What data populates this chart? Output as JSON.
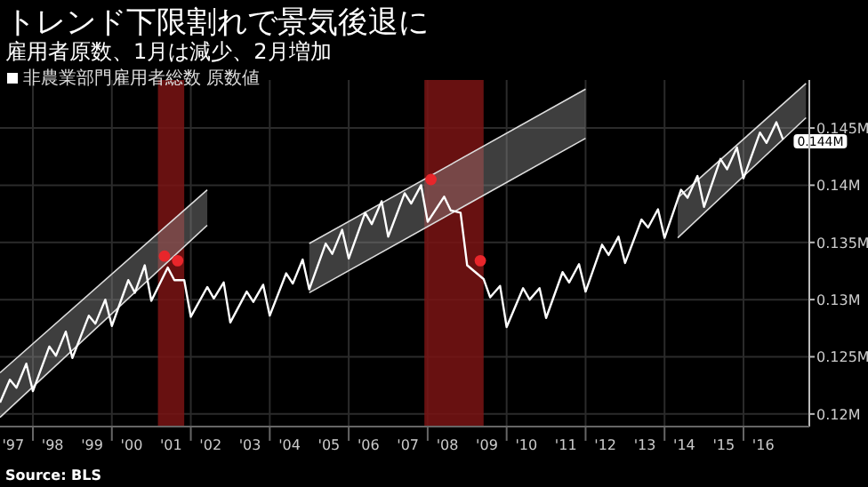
{
  "chart_data": {
    "type": "line",
    "title": "トレンド下限割れで景気後退に",
    "subtitle": "雇用者原数、1月は減少、2月増加",
    "xlim": [
      "1997-03",
      "2017-09"
    ],
    "ylim": [
      0.1189,
      0.1492
    ],
    "xticks": [
      {
        "value": "1997-07",
        "label": "'97"
      },
      {
        "value": "1998-07",
        "label": "'98"
      },
      {
        "value": "1999-07",
        "label": "'99"
      },
      {
        "value": "2000-07",
        "label": "'00"
      },
      {
        "value": "2001-07",
        "label": "'01"
      },
      {
        "value": "2002-07",
        "label": "'02"
      },
      {
        "value": "2003-07",
        "label": "'03"
      },
      {
        "value": "2004-07",
        "label": "'04"
      },
      {
        "value": "2005-07",
        "label": "'05"
      },
      {
        "value": "2006-07",
        "label": "'06"
      },
      {
        "value": "2007-07",
        "label": "'07"
      },
      {
        "value": "2008-07",
        "label": "'08"
      },
      {
        "value": "2009-07",
        "label": "'09"
      },
      {
        "value": "2010-07",
        "label": "'10"
      },
      {
        "value": "2011-07",
        "label": "'11"
      },
      {
        "value": "2012-07",
        "label": "'12"
      },
      {
        "value": "2013-07",
        "label": "'13"
      },
      {
        "value": "2014-07",
        "label": "'14"
      },
      {
        "value": "2015-07",
        "label": "'15"
      },
      {
        "value": "2016-07",
        "label": "'16"
      },
      {
        "value": "1998-01",
        "label": null
      },
      {
        "value": "2000-01",
        "label": null
      },
      {
        "value": "2002-01",
        "label": null
      },
      {
        "value": "2004-01",
        "label": null
      },
      {
        "value": "2006-01",
        "label": null
      },
      {
        "value": "2008-01",
        "label": null
      },
      {
        "value": "2010-01",
        "label": null
      },
      {
        "value": "2012-01",
        "label": null
      },
      {
        "value": "2014-01",
        "label": null
      },
      {
        "value": "2016-01",
        "label": null
      }
    ],
    "yticks": [
      {
        "value": 0.12,
        "label": "0.12M"
      },
      {
        "value": 0.125,
        "label": "0.125M"
      },
      {
        "value": 0.13,
        "label": "0.13M"
      },
      {
        "value": 0.135,
        "label": "0.135M"
      },
      {
        "value": 0.14,
        "label": "0.14M"
      },
      {
        "value": 0.145,
        "label": "0.145M"
      }
    ],
    "grid": true,
    "legend": "top left",
    "bands": [
      {
        "axis": "x",
        "from": "2001-03",
        "to": "2001-11",
        "color": "#7a1414"
      },
      {
        "axis": "x",
        "from": "2007-12",
        "to": "2009-06",
        "color": "#7a1414"
      }
    ],
    "series": [
      {
        "type": "line",
        "color": "#dddddd",
        "x": [
          "1997-03",
          "2002-06"
        ],
        "values": [
          0.1236,
          0.1396
        ]
      },
      {
        "type": "line",
        "color": "#dddddd",
        "x": [
          "1997-03",
          "2002-06"
        ],
        "values": [
          0.1197,
          0.1365
        ],
        "lower": [
          0.1197,
          0.1365
        ],
        "upper": [
          0.1236,
          0.1396
        ]
      },
      {
        "type": "line",
        "color": "#dddddd",
        "x": [
          "2005-01",
          "2012-01"
        ],
        "values": [
          0.1349,
          0.1484
        ]
      },
      {
        "type": "line",
        "color": "#dddddd",
        "x": [
          "2005-01",
          "2012-01"
        ],
        "values": [
          0.1306,
          0.1441
        ],
        "lower": [
          0.1306,
          0.1441
        ],
        "upper": [
          0.1349,
          0.1484
        ]
      },
      {
        "type": "line",
        "color": "#dddddd",
        "x": [
          "2014-05",
          "2017-08"
        ],
        "values": [
          0.1389,
          0.1489
        ]
      },
      {
        "type": "line",
        "color": "#dddddd",
        "x": [
          "2014-05",
          "2017-08"
        ],
        "values": [
          0.1354,
          0.1459
        ],
        "lower": [
          0.1354,
          0.1459
        ],
        "upper": [
          0.1389,
          0.1489
        ]
      },
      {
        "type": "line",
        "name": "非農業部門雇用者総数 原数値",
        "color": "#ffffff",
        "x": [
          "1997-03",
          "1997-06",
          "1997-08",
          "1997-11",
          "1998-01",
          "1998-06",
          "1998-08",
          "1998-11",
          "1999-01",
          "1999-06",
          "1999-08",
          "1999-11",
          "2000-01",
          "2000-06",
          "2000-08",
          "2000-11",
          "2001-01",
          "2001-06",
          "2001-08",
          "2001-11",
          "2002-01",
          "2002-06",
          "2002-08",
          "2002-11",
          "2003-01",
          "2003-06",
          "2003-08",
          "2003-11",
          "2004-01",
          "2004-06",
          "2004-08",
          "2004-11",
          "2005-01",
          "2005-06",
          "2005-08",
          "2005-11",
          "2006-01",
          "2006-06",
          "2006-08",
          "2006-11",
          "2007-01",
          "2007-06",
          "2007-08",
          "2007-11",
          "2008-01",
          "2008-06",
          "2008-08",
          "2008-11",
          "2009-01",
          "2009-06",
          "2009-08",
          "2009-11",
          "2010-01",
          "2010-06",
          "2010-08",
          "2010-11",
          "2011-01",
          "2011-06",
          "2011-08",
          "2011-11",
          "2012-01",
          "2012-06",
          "2012-08",
          "2012-11",
          "2013-01",
          "2013-06",
          "2013-08",
          "2013-11",
          "2014-01",
          "2014-06",
          "2014-08",
          "2014-11",
          "2015-01",
          "2015-06",
          "2015-08",
          "2015-11",
          "2016-01",
          "2016-06",
          "2016-08",
          "2016-11",
          "2017-01"
        ],
        "values": [
          0.121,
          0.123,
          0.1223,
          0.1244,
          0.122,
          0.1259,
          0.1251,
          0.1272,
          0.1249,
          0.1286,
          0.1279,
          0.13,
          0.1277,
          0.1317,
          0.1306,
          0.133,
          0.1299,
          0.1328,
          0.1317,
          0.1317,
          0.1285,
          0.1311,
          0.1301,
          0.1315,
          0.128,
          0.1307,
          0.1298,
          0.1313,
          0.1286,
          0.1323,
          0.1314,
          0.1335,
          0.1309,
          0.1349,
          0.134,
          0.1361,
          0.1336,
          0.1376,
          0.1366,
          0.1386,
          0.1355,
          0.1393,
          0.1384,
          0.14,
          0.1368,
          0.139,
          0.1378,
          0.1376,
          0.133,
          0.1318,
          0.1302,
          0.1312,
          0.1276,
          0.131,
          0.13,
          0.131,
          0.1284,
          0.1324,
          0.1315,
          0.1331,
          0.1307,
          0.1348,
          0.1339,
          0.1355,
          0.1332,
          0.137,
          0.1363,
          0.1379,
          0.1354,
          0.1396,
          0.1389,
          0.1408,
          0.1381,
          0.1423,
          0.1414,
          0.1433,
          0.1406,
          0.1446,
          0.1437,
          0.1455,
          0.144
        ],
        "value_labels": [
          null,
          null,
          null,
          null,
          null,
          null,
          null,
          null,
          null,
          null,
          null,
          null,
          null,
          null,
          null,
          null,
          null,
          null,
          null,
          null,
          null,
          null,
          null,
          null,
          null,
          null,
          null,
          null,
          null,
          null,
          null,
          null,
          null,
          null,
          null,
          null,
          null,
          null,
          null,
          null,
          null,
          null,
          null,
          null,
          null,
          null,
          null,
          null,
          null,
          null,
          null,
          null,
          null,
          null,
          null,
          null,
          null,
          null,
          null,
          null,
          null,
          null,
          null,
          null,
          null,
          null,
          null,
          null,
          null,
          null,
          null,
          null,
          null,
          null,
          null,
          null,
          null,
          null,
          null,
          null,
          "0.144M"
        ]
      },
      {
        "type": "scatter",
        "color": "#e8262b",
        "marker": "circle",
        "x": [
          "2001-05",
          "2001-09",
          "2008-02",
          "2009-05"
        ],
        "values": [
          0.1338,
          0.1334,
          0.1405,
          0.1334
        ]
      }
    ],
    "annotations": [
      "Source: BLS"
    ]
  }
}
